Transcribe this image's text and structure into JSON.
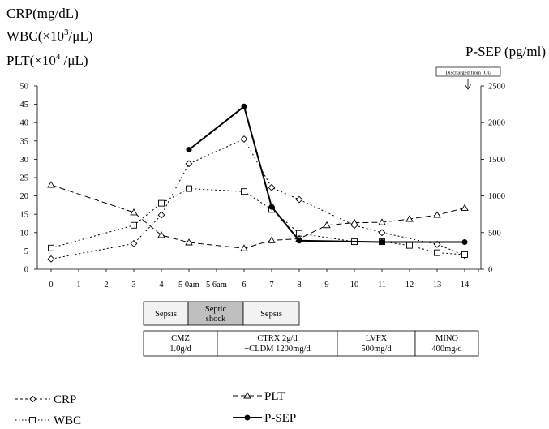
{
  "chart_data": {
    "type": "line",
    "left_axis_title_lines": [
      {
        "main": "CRP(mg/dL)",
        "sup": "",
        "tail": ""
      },
      {
        "main": "WBC(×10",
        "sup": "3",
        "tail": "/μL)"
      },
      {
        "main": "PLT(×10",
        "sup": "4",
        "tail": " /μL)"
      }
    ],
    "right_axis_title": "P-SEP (pg/ml)",
    "annotation": "Discharged from ICU",
    "annotation_x": 14,
    "x_categories": [
      "0",
      "1",
      "2",
      "3",
      "4",
      "5 0am",
      "5 6am",
      "6",
      "7",
      "8",
      "9",
      "10",
      "11",
      "12",
      "13",
      "14"
    ],
    "y_left": {
      "min": 0,
      "max": 50,
      "ticks": [
        0,
        5,
        10,
        15,
        20,
        25,
        30,
        35,
        40,
        45,
        50
      ]
    },
    "y_right": {
      "min": 0,
      "max": 2500,
      "ticks": [
        0,
        500,
        1000,
        1500,
        2000,
        2500
      ]
    },
    "series": [
      {
        "name": "CRP",
        "axis": "left",
        "style": "dotted",
        "marker": "diamond",
        "color": "#000000",
        "x": [
          0,
          3,
          4,
          5,
          6,
          7,
          8,
          10,
          11,
          13,
          14
        ],
        "y": [
          2.8,
          7,
          14.8,
          28.8,
          35.5,
          22.3,
          19,
          12,
          10,
          6.8,
          3.8
        ]
      },
      {
        "name": "WBC",
        "axis": "left",
        "style": "dotted",
        "marker": "square",
        "color": "#000000",
        "x": [
          0,
          3,
          4,
          5,
          6,
          7,
          8,
          10,
          11,
          12,
          13,
          14
        ],
        "y": [
          5.8,
          12,
          18,
          22,
          21.2,
          16.3,
          9.8,
          7.5,
          7.5,
          6.5,
          4.5,
          4
        ]
      },
      {
        "name": "PLT",
        "axis": "left",
        "style": "dashed",
        "marker": "triangle",
        "color": "#000000",
        "x": [
          0,
          3,
          4,
          5,
          6,
          7,
          8,
          9,
          10,
          11,
          12,
          13,
          14
        ],
        "y": [
          23,
          15.5,
          9.3,
          7.3,
          5.7,
          7.9,
          8.3,
          12,
          12.7,
          12.8,
          13.7,
          14.8,
          16.7
        ]
      },
      {
        "name": "P-SEP",
        "axis": "right",
        "style": "solid",
        "marker": "circle",
        "color": "#000000",
        "x": [
          5,
          6,
          7,
          8,
          11,
          14
        ],
        "y": [
          1630,
          2220,
          850,
          390,
          370,
          370
        ]
      }
    ],
    "x_positions": [
      0,
      3,
      4,
      5,
      6,
      7,
      8,
      9,
      10,
      11,
      12,
      13,
      14
    ]
  },
  "phase_row": [
    "Sepsis",
    "Septic shock",
    "Sepsis"
  ],
  "drug_row": [
    "CMZ 1.0g/d",
    "CTRX 2g/d +CLDM 1200mg/d",
    "LVFX 500mg/d",
    "MINO 400mg/d"
  ],
  "legend": [
    "CRP",
    "WBC",
    "PLT",
    "P-SEP"
  ]
}
